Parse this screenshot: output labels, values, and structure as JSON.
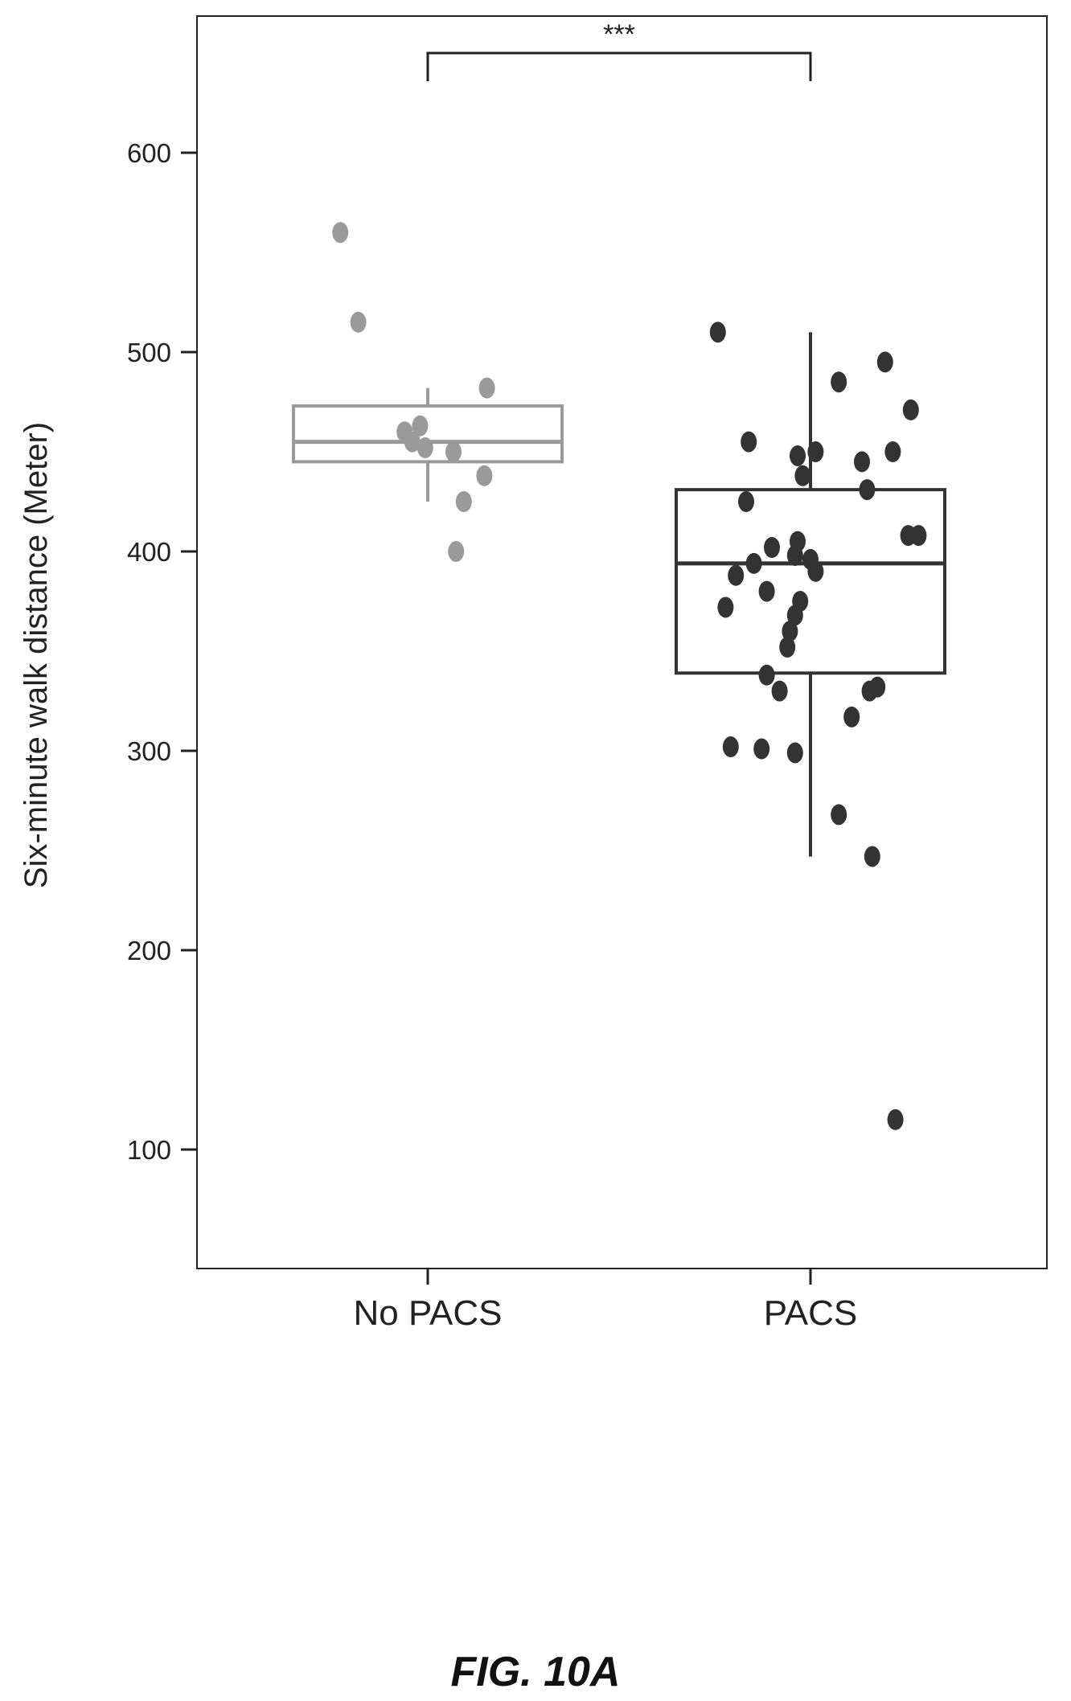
{
  "figure": {
    "caption": "FIG. 10A"
  },
  "chart_data": {
    "type": "box",
    "ylabel": "Six-minute walk distance (Meter)",
    "xlabel": "",
    "categories": [
      "No PACS",
      "PACS"
    ],
    "ylim": [
      90,
      720
    ],
    "yticks": [
      100,
      200,
      300,
      400,
      500,
      600,
      700
    ],
    "grid": false,
    "significance": {
      "label": "***",
      "between": [
        "No PACS",
        "PACS"
      ],
      "y": 650
    },
    "colors": {
      "No PACS": "#9a9a9a",
      "PACS": "#333333"
    },
    "groups": [
      {
        "name": "No PACS",
        "box": {
          "whisker_low": 425,
          "q1": 445,
          "median": 455,
          "q3": 473,
          "whisker_high": 482
        },
        "points": [
          {
            "x": -0.34,
            "y": 560
          },
          {
            "x": -0.27,
            "y": 515
          },
          {
            "x": 0.23,
            "y": 482
          },
          {
            "x": -0.09,
            "y": 460
          },
          {
            "x": -0.03,
            "y": 463
          },
          {
            "x": -0.06,
            "y": 455
          },
          {
            "x": -0.01,
            "y": 452
          },
          {
            "x": 0.1,
            "y": 450
          },
          {
            "x": 0.22,
            "y": 438
          },
          {
            "x": 0.14,
            "y": 425
          },
          {
            "x": 0.11,
            "y": 400
          }
        ]
      },
      {
        "name": "PACS",
        "box": {
          "whisker_low": 247,
          "q1": 339,
          "median": 394,
          "q3": 431,
          "whisker_high": 510
        },
        "points": [
          {
            "x": -0.36,
            "y": 510
          },
          {
            "x": 0.29,
            "y": 495
          },
          {
            "x": 0.11,
            "y": 485
          },
          {
            "x": 0.39,
            "y": 471
          },
          {
            "x": -0.24,
            "y": 455
          },
          {
            "x": 0.32,
            "y": 450
          },
          {
            "x": -0.05,
            "y": 448
          },
          {
            "x": 0.02,
            "y": 450
          },
          {
            "x": 0.2,
            "y": 445
          },
          {
            "x": -0.03,
            "y": 438
          },
          {
            "x": 0.22,
            "y": 431
          },
          {
            "x": -0.25,
            "y": 425
          },
          {
            "x": 0.38,
            "y": 408
          },
          {
            "x": 0.42,
            "y": 408
          },
          {
            "x": -0.05,
            "y": 405
          },
          {
            "x": -0.15,
            "y": 402
          },
          {
            "x": -0.06,
            "y": 398
          },
          {
            "x": -0.22,
            "y": 394
          },
          {
            "x": 0.0,
            "y": 396
          },
          {
            "x": 0.02,
            "y": 390
          },
          {
            "x": -0.29,
            "y": 388
          },
          {
            "x": -0.17,
            "y": 380
          },
          {
            "x": -0.33,
            "y": 372
          },
          {
            "x": -0.04,
            "y": 375
          },
          {
            "x": -0.06,
            "y": 368
          },
          {
            "x": -0.08,
            "y": 360
          },
          {
            "x": -0.09,
            "y": 352
          },
          {
            "x": -0.17,
            "y": 338
          },
          {
            "x": -0.12,
            "y": 330
          },
          {
            "x": 0.23,
            "y": 330
          },
          {
            "x": 0.26,
            "y": 332
          },
          {
            "x": 0.16,
            "y": 317
          },
          {
            "x": -0.31,
            "y": 302
          },
          {
            "x": -0.19,
            "y": 301
          },
          {
            "x": -0.06,
            "y": 299
          },
          {
            "x": 0.11,
            "y": 268
          },
          {
            "x": 0.24,
            "y": 247
          },
          {
            "x": 0.33,
            "y": 115
          }
        ]
      }
    ]
  }
}
